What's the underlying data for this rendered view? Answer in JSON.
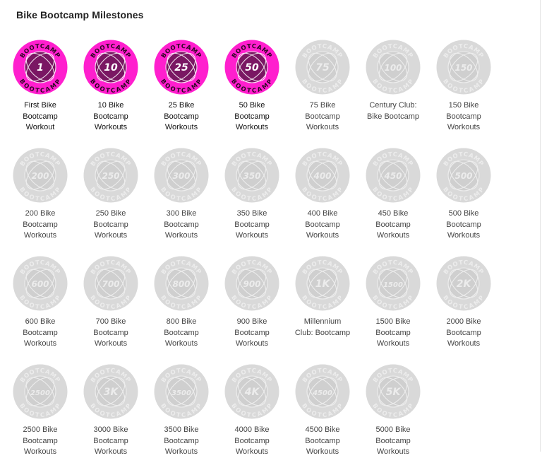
{
  "page": {
    "title": "Bike Bootcamp Milestones"
  },
  "badge_ring_text": "BOOTCAMP",
  "colors": {
    "earned_fill": "#ff1fce",
    "earned_inner": "#7a1763",
    "locked_fill": "#d9d9d9",
    "locked_inner": "#cfcfcf"
  },
  "badges": [
    {
      "value": "1",
      "label": "First Bike Bootcamp Workout",
      "earned": true
    },
    {
      "value": "10",
      "label": "10 Bike Bootcamp Workouts",
      "earned": true
    },
    {
      "value": "25",
      "label": "25 Bike Bootcamp Workouts",
      "earned": true
    },
    {
      "value": "50",
      "label": "50 Bike Bootcamp Workouts",
      "earned": true
    },
    {
      "value": "75",
      "label": "75 Bike Bootcamp Workouts",
      "earned": false
    },
    {
      "value": "100",
      "label": "Century Club: Bike Bootcamp",
      "earned": false
    },
    {
      "value": "150",
      "label": "150 Bike Bootcamp Workouts",
      "earned": false
    },
    {
      "value": "200",
      "label": "200 Bike Bootcamp Workouts",
      "earned": false
    },
    {
      "value": "250",
      "label": "250 Bike Bootcamp Workouts",
      "earned": false
    },
    {
      "value": "300",
      "label": "300 Bike Bootcamp Workouts",
      "earned": false
    },
    {
      "value": "350",
      "label": "350 Bike Bootcamp Workouts",
      "earned": false
    },
    {
      "value": "400",
      "label": "400 Bike Bootcamp Workouts",
      "earned": false
    },
    {
      "value": "450",
      "label": "450 Bike Bootcamp Workouts",
      "earned": false
    },
    {
      "value": "500",
      "label": "500 Bike Bootcamp Workouts",
      "earned": false
    },
    {
      "value": "600",
      "label": "600 Bike Bootcamp Workouts",
      "earned": false
    },
    {
      "value": "700",
      "label": "700 Bike Bootcamp Workouts",
      "earned": false
    },
    {
      "value": "800",
      "label": "800 Bike Bootcamp Workouts",
      "earned": false
    },
    {
      "value": "900",
      "label": "900 Bike Bootcamp Workouts",
      "earned": false
    },
    {
      "value": "1K",
      "label": "Millennium Club: Bootcamp",
      "earned": false
    },
    {
      "value": "1500",
      "label": "1500 Bike Bootcamp Workouts",
      "earned": false
    },
    {
      "value": "2K",
      "label": "2000 Bike Bootcamp Workouts",
      "earned": false
    },
    {
      "value": "2500",
      "label": "2500 Bike Bootcamp Workouts",
      "earned": false
    },
    {
      "value": "3K",
      "label": "3000 Bike Bootcamp Workouts",
      "earned": false
    },
    {
      "value": "3500",
      "label": "3500 Bike Bootcamp Workouts",
      "earned": false
    },
    {
      "value": "4K",
      "label": "4000 Bike Bootcamp Workouts",
      "earned": false
    },
    {
      "value": "4500",
      "label": "4500 Bike Bootcamp Workouts",
      "earned": false
    },
    {
      "value": "5K",
      "label": "5000 Bike Bootcamp Workouts",
      "earned": false
    }
  ]
}
